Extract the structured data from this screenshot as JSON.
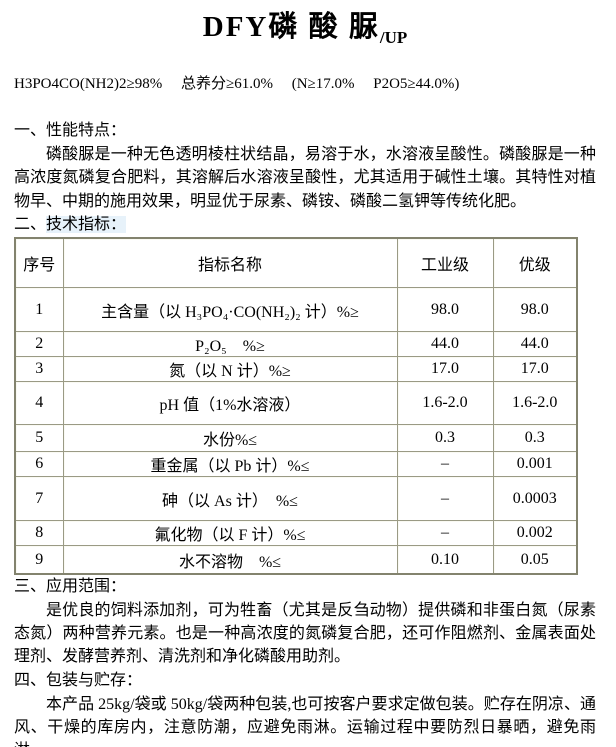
{
  "title": {
    "main": "DFY磷 酸 脲",
    "suffix": "/UP"
  },
  "formula": "H3PO4CO(NH2)2≥98%　 总养分≥61.0%　 (N≥17.0%　 P2O5≥44.0%)",
  "sections": {
    "s1": {
      "heading": "一、性能特点：",
      "body": "磷酸脲是一种无色透明棱柱状结晶，易溶于水，水溶液呈酸性。磷酸脲是一种高浓度氮磷复合肥料，其溶解后水溶液呈酸性，尤其适用于碱性土壤。其特性对植物早、中期的施用效果，明显优于尿素、磷铵、磷酸二氢钾等传统化肥。"
    },
    "s2": {
      "prefix": "二、",
      "highlighted": "技术指标："
    },
    "s3": {
      "heading": "三、应用范围：",
      "body": "是优良的饲料添加剂，可为牲畜（尤其是反刍动物）提供磷和非蛋白氮（尿素态氮）两种营养元素。也是一种高浓度的氮磷复合肥，还可作阻燃剂、金属表面处理剂、发酵营养剂、清洗剂和净化磷酸用助剂。"
    },
    "s4": {
      "heading": "四、包装与贮存：",
      "body": "本产品 25kg/袋或 50kg/袋两种包装,也可按客户要求定做包装。贮存在阴凉、通风、干燥的库房内，注意防潮，应避免雨淋。运输过程中要防烈日暴晒，避免雨淋。"
    }
  },
  "table": {
    "headers": [
      "序号",
      "指标名称",
      "工业级",
      "优级"
    ],
    "rows": [
      [
        "1",
        "主含量（以 H₃PO₄·CO(NH₂)₂ 计）%≥",
        "98.0",
        "98.0"
      ],
      [
        "2",
        "P₂O₅　%≥",
        "44.0",
        "44.0"
      ],
      [
        "3",
        "氮（以 N 计）%≥",
        "17.0",
        "17.0"
      ],
      [
        "4",
        "pH 值（1%水溶液）",
        "1.6-2.0",
        "1.6-2.0"
      ],
      [
        "5",
        "水份%≤",
        "0.3",
        "0.3"
      ],
      [
        "6",
        "重金属（以 Pb 计）%≤",
        "–",
        "0.001"
      ],
      [
        "7",
        "砷（以 As 计）　%≤",
        "–",
        "0.0003"
      ],
      [
        "8",
        "氟化物（以 F 计）%≤",
        "–",
        "0.002"
      ],
      [
        "9",
        "水不溶物　%≤",
        "0.10",
        "0.05"
      ]
    ]
  },
  "colors": {
    "table_border": "#83836e",
    "cell_border": "#9a9a85",
    "highlight": "#e7f2fa",
    "text": "#000000",
    "background": "#ffffff"
  }
}
